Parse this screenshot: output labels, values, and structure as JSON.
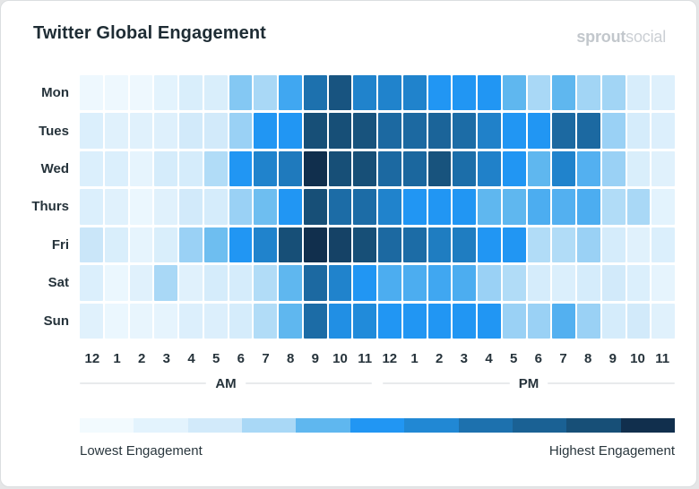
{
  "header": {
    "title": "Twitter Global Engagement",
    "logo": {
      "bold": "sprout",
      "light": "social"
    }
  },
  "chart_data": {
    "type": "heatmap",
    "title": "Twitter Global Engagement",
    "rows": [
      "Mon",
      "Tues",
      "Wed",
      "Thurs",
      "Fri",
      "Sat",
      "Sun"
    ],
    "columns": [
      "12",
      "1",
      "2",
      "3",
      "4",
      "5",
      "6",
      "7",
      "8",
      "9",
      "10",
      "11",
      "12",
      "1",
      "2",
      "3",
      "4",
      "5",
      "6",
      "7",
      "8",
      "9",
      "10",
      "11"
    ],
    "column_groups": [
      {
        "label": "AM",
        "span": 12
      },
      {
        "label": "PM",
        "span": 12
      }
    ],
    "scale": {
      "min": 0,
      "max": 10,
      "min_label": "Lowest Engagement",
      "max_label": "Highest Engagement",
      "palette": [
        "#F2FAFE",
        "#E3F3FD",
        "#D2EAFA",
        "#A9D8F6",
        "#5FB7EF",
        "#2196F3",
        "#2188D4",
        "#1D71AE",
        "#1A6194",
        "#174F77",
        "#112F4D"
      ]
    },
    "values": [
      [
        0.3,
        0.3,
        0.3,
        1.0,
        1.6,
        1.6,
        3.5,
        3.0,
        4.5,
        7.0,
        8.7,
        6.2,
        6.2,
        6.2,
        5.0,
        5.0,
        5.0,
        4.0,
        3.0,
        4.0,
        3.1,
        3.1,
        1.7,
        1.3
      ],
      [
        1.5,
        1.2,
        1.2,
        1.3,
        2.0,
        2.0,
        3.2,
        5.0,
        5.0,
        9.0,
        9.0,
        8.8,
        7.5,
        7.5,
        7.8,
        7.3,
        6.3,
        5.0,
        5.0,
        7.5,
        7.5,
        3.2,
        1.8,
        1.4
      ],
      [
        1.5,
        1.5,
        0.8,
        1.8,
        1.8,
        2.8,
        5.0,
        6.2,
        6.6,
        10.0,
        9.0,
        9.0,
        7.5,
        7.6,
        8.8,
        7.2,
        6.3,
        5.0,
        4.0,
        6.2,
        4.2,
        3.2,
        1.6,
        1.2
      ],
      [
        1.5,
        1.2,
        0.5,
        1.2,
        2.0,
        1.8,
        3.2,
        3.8,
        5.0,
        9.0,
        7.3,
        7.3,
        6.2,
        5.0,
        5.0,
        5.0,
        4.0,
        4.0,
        4.3,
        4.2,
        4.3,
        2.8,
        3.0,
        1.0
      ],
      [
        2.2,
        1.6,
        0.8,
        1.6,
        3.2,
        3.8,
        5.0,
        6.2,
        9.0,
        10.0,
        9.4,
        9.0,
        7.5,
        7.3,
        6.5,
        6.5,
        5.0,
        5.0,
        2.8,
        2.8,
        3.2,
        1.8,
        1.2,
        1.5
      ],
      [
        1.5,
        0.5,
        1.2,
        3.0,
        1.2,
        1.8,
        1.8,
        2.8,
        4.0,
        7.5,
        6.2,
        5.0,
        4.3,
        4.3,
        4.5,
        4.3,
        3.2,
        2.8,
        1.8,
        1.5,
        1.8,
        2.0,
        1.5,
        0.8
      ],
      [
        1.2,
        0.5,
        0.7,
        0.8,
        1.4,
        1.4,
        1.8,
        2.8,
        4.0,
        7.3,
        5.5,
        5.8,
        5.0,
        5.0,
        5.0,
        5.0,
        5.0,
        3.2,
        3.2,
        4.2,
        3.2,
        1.8,
        2.0,
        1.2
      ]
    ]
  },
  "legend": {
    "lowest": "Lowest Engagement",
    "highest": "Highest Engagement"
  }
}
